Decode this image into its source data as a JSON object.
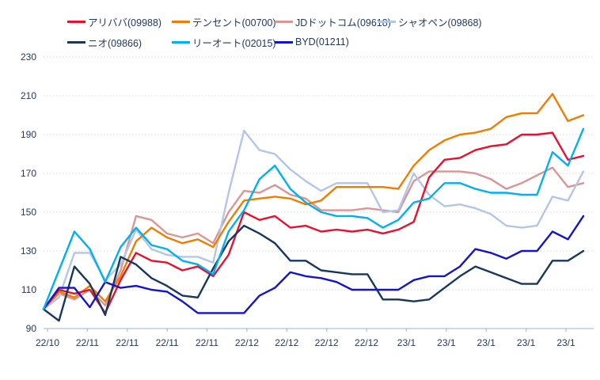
{
  "chart_data": {
    "type": "line",
    "title": "",
    "xlabel": "",
    "ylabel": "",
    "ylim": [
      90,
      230
    ],
    "y_ticks": [
      230,
      210,
      190,
      170,
      150,
      130,
      110,
      90
    ],
    "x_tick_labels": [
      "22/10",
      "22/11",
      "22/11",
      "22/11",
      "22/11",
      "22/12",
      "22/12",
      "22/12",
      "22/12",
      "23/1",
      "23/1",
      "23/1",
      "23/1",
      "23/1"
    ],
    "grid": "horizontal-dotted",
    "legend_position": "top",
    "index_base_note": "indexed price performance, start = 100",
    "colors": {
      "axis_text": "#24385f",
      "axis_line": "#a8c4e0",
      "gridline": "#d8d8d8",
      "background": "#ffffff"
    },
    "series": [
      {
        "name": "アリババ(09988)",
        "color": "#e8112d",
        "values": [
          100,
          110,
          108,
          110,
          98,
          115,
          129,
          125,
          124,
          120,
          122,
          117,
          128,
          150,
          146,
          148,
          142,
          143,
          140,
          141,
          140,
          141,
          139,
          141,
          145,
          168,
          177,
          178,
          182,
          184,
          185,
          190,
          190,
          191,
          177,
          179
        ]
      },
      {
        "name": "テンセント(00700)",
        "color": "#f07d00",
        "values": [
          100,
          109,
          106,
          112,
          104,
          117,
          135,
          142,
          137,
          134,
          136,
          132,
          145,
          156,
          157,
          158,
          157,
          154,
          156,
          163,
          163,
          163,
          163,
          162,
          174,
          182,
          187,
          190,
          191,
          193,
          199,
          201,
          201,
          211,
          197,
          200
        ]
      },
      {
        "name": "JDドットコム(09618)",
        "color": "#d99694",
        "values": [
          100,
          108,
          105,
          110,
          102,
          120,
          148,
          146,
          139,
          137,
          139,
          134,
          150,
          161,
          160,
          164,
          159,
          157,
          151,
          151,
          151,
          152,
          151,
          150,
          166,
          171,
          171,
          171,
          170,
          167,
          162,
          165,
          169,
          173,
          163,
          165
        ]
      },
      {
        "name": "シャオペン(09868)",
        "color": "#b3c6e7",
        "values": [
          100,
          106,
          129,
          129,
          115,
          123,
          141,
          131,
          128,
          127,
          127,
          124,
          160,
          192,
          182,
          180,
          172,
          166,
          161,
          165,
          165,
          165,
          150,
          151,
          170,
          159,
          153,
          154,
          152,
          149,
          143,
          142,
          143,
          158,
          156,
          171
        ]
      },
      {
        "name": "ニオ(09866)",
        "color": "#17375e",
        "values": [
          100,
          94,
          122,
          113,
          97,
          127,
          123,
          116,
          112,
          107,
          106,
          121,
          135,
          143,
          139,
          134,
          125,
          125,
          120,
          119,
          118,
          118,
          105,
          105,
          104,
          105,
          111,
          117,
          122,
          119,
          116,
          113,
          113,
          125,
          125,
          130
        ]
      },
      {
        "name": "リーオート(02015)",
        "color": "#00b0f0",
        "values": [
          100,
          120,
          140,
          131,
          114,
          132,
          142,
          133,
          131,
          125,
          123,
          118,
          140,
          151,
          167,
          174,
          162,
          155,
          150,
          148,
          148,
          147,
          142,
          146,
          155,
          157,
          165,
          165,
          162,
          160,
          160,
          159,
          159,
          181,
          174,
          193
        ]
      },
      {
        "name": "BYD(01211)",
        "color": "#1414c8",
        "values": [
          100,
          111,
          111,
          101,
          114,
          111,
          112,
          110,
          109,
          104,
          98,
          98,
          98,
          98,
          107,
          111,
          119,
          117,
          116,
          114,
          110,
          110,
          110,
          110,
          115,
          117,
          117,
          122,
          131,
          129,
          126,
          130,
          130,
          140,
          136,
          148
        ]
      }
    ]
  }
}
